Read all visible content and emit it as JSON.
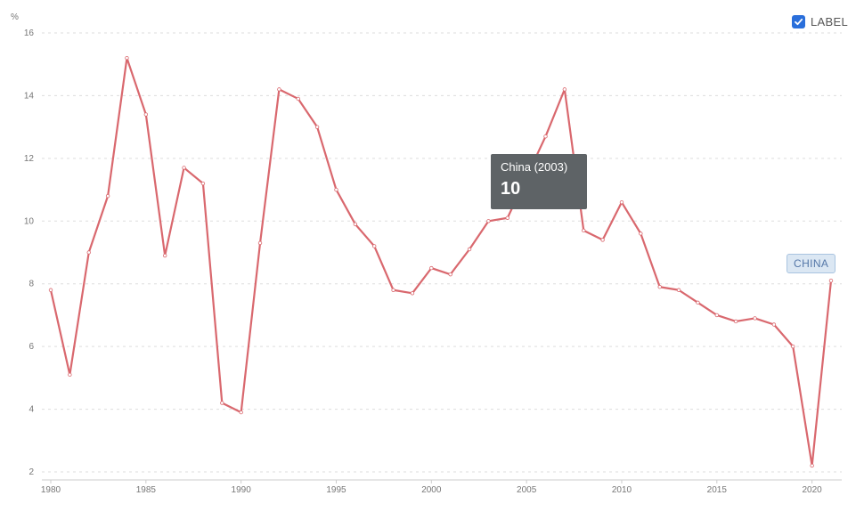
{
  "chart_data": {
    "type": "line",
    "ylabel": "%",
    "ylim": [
      2,
      16
    ],
    "xlim": [
      1980,
      2021
    ],
    "yticks": [
      2,
      4,
      6,
      8,
      10,
      12,
      14,
      16
    ],
    "xticks": [
      1980,
      1985,
      1990,
      1995,
      2000,
      2005,
      2010,
      2015,
      2020
    ],
    "grid": true,
    "series": [
      {
        "name": "CHINA",
        "color": "#d9686e",
        "x": [
          1980,
          1981,
          1982,
          1983,
          1984,
          1985,
          1986,
          1987,
          1988,
          1989,
          1990,
          1991,
          1992,
          1993,
          1994,
          1995,
          1996,
          1997,
          1998,
          1999,
          2000,
          2001,
          2002,
          2003,
          2004,
          2005,
          2006,
          2007,
          2008,
          2009,
          2010,
          2011,
          2012,
          2013,
          2014,
          2015,
          2016,
          2017,
          2018,
          2019,
          2020,
          2021
        ],
        "values": [
          7.8,
          5.1,
          9.0,
          10.8,
          15.2,
          13.4,
          8.9,
          11.7,
          11.2,
          4.2,
          3.9,
          9.3,
          14.2,
          13.9,
          13.0,
          11.0,
          9.9,
          9.2,
          7.8,
          7.7,
          8.5,
          8.3,
          9.1,
          10.0,
          10.1,
          11.4,
          12.7,
          14.2,
          9.7,
          9.4,
          10.6,
          9.6,
          7.9,
          7.8,
          7.4,
          7.0,
          6.8,
          6.9,
          6.7,
          6.0,
          2.2,
          8.1
        ]
      }
    ]
  },
  "legend_toggle": {
    "label": "LABEL",
    "checked": true
  },
  "tooltip": {
    "title": "China (2003)",
    "value": "10"
  },
  "series_tag": "CHINA"
}
